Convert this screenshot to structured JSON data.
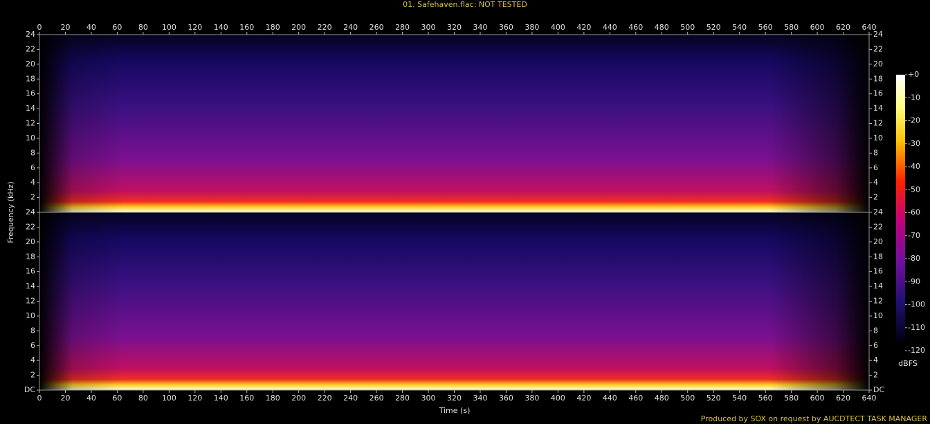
{
  "chart_data": {
    "type": "spectrogram",
    "title": "01. Safehaven.flac: NOT TESTED",
    "x_label": "Time (s)",
    "y_label": "Frequency (kHz)",
    "xlim": [
      0,
      640
    ],
    "xticks": [
      0,
      20,
      40,
      60,
      80,
      100,
      120,
      140,
      160,
      180,
      200,
      220,
      240,
      260,
      280,
      300,
      320,
      340,
      360,
      380,
      400,
      420,
      440,
      460,
      480,
      500,
      520,
      540,
      560,
      580,
      600,
      620,
      640
    ],
    "channels": [
      {
        "ylim": [
          0,
          24
        ],
        "yticks": [
          2,
          4,
          6,
          8,
          10,
          12,
          14,
          16,
          18,
          20,
          22,
          24
        ]
      },
      {
        "ylim": [
          0,
          24
        ],
        "yticks": [
          {
            "value": 0,
            "label": "DC"
          },
          2,
          4,
          6,
          8,
          10,
          12,
          14,
          16,
          18,
          20,
          22,
          24
        ]
      }
    ],
    "colorbar": {
      "label": "dBFS",
      "lim": [
        -120,
        0
      ],
      "ticks": [
        {
          "value": 0,
          "label": "+0"
        },
        -10,
        -20,
        -30,
        -40,
        -50,
        -60,
        -70,
        -80,
        -90,
        -100,
        -110,
        -120
      ]
    },
    "footer": "Produced by SOX on request by AUCDTECT TASK MANAGER"
  }
}
